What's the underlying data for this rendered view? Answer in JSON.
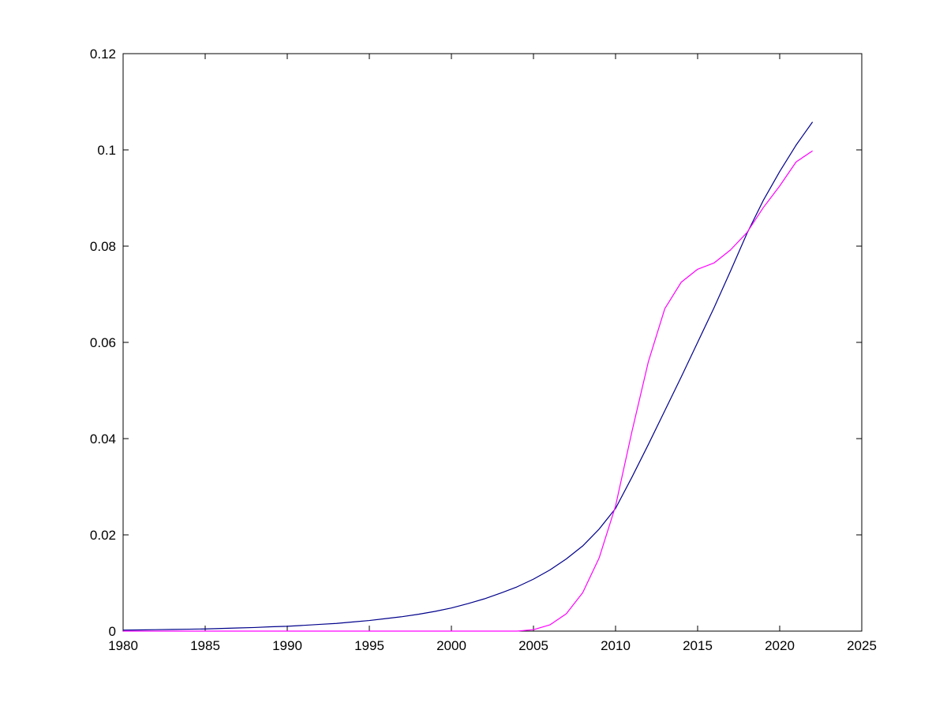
{
  "figure": {
    "background_color": "#ffffff",
    "axis_color": "#000000"
  },
  "chart_data": {
    "type": "line",
    "title": "",
    "xlabel": "",
    "ylabel": "",
    "grid": false,
    "legend": "none",
    "box": true,
    "xlim": [
      1980,
      2025
    ],
    "ylim": [
      0,
      0.12
    ],
    "x_ticks": [
      1980,
      1985,
      1990,
      1995,
      2000,
      2005,
      2010,
      2015,
      2020,
      2025
    ],
    "x_tick_labels": [
      "1980",
      "1985",
      "1990",
      "1995",
      "2000",
      "2005",
      "2010",
      "2015",
      "2020",
      "2025"
    ],
    "y_ticks": [
      0,
      0.02,
      0.04,
      0.06,
      0.08,
      0.1,
      0.12
    ],
    "y_tick_labels": [
      "0",
      "0.02",
      "0.04",
      "0.06",
      "0.08",
      "0.1",
      "0.12"
    ],
    "x": [
      1980,
      1981,
      1982,
      1983,
      1984,
      1985,
      1986,
      1987,
      1988,
      1989,
      1990,
      1991,
      1992,
      1993,
      1994,
      1995,
      1996,
      1997,
      1998,
      1999,
      2000,
      2001,
      2002,
      2003,
      2004,
      2005,
      2006,
      2007,
      2008,
      2009,
      2010,
      2011,
      2012,
      2013,
      2014,
      2015,
      2016,
      2017,
      2018,
      2019,
      2020,
      2021,
      2022
    ],
    "series": [
      {
        "name": "dark-blue-smooth-curve",
        "color": "#00008B",
        "values": [
          0.0002,
          0.00025,
          0.0003,
          0.00035,
          0.0004,
          0.00045,
          0.00055,
          0.00065,
          0.00075,
          0.0009,
          0.001,
          0.0012,
          0.0014,
          0.0016,
          0.0019,
          0.0022,
          0.0026,
          0.003,
          0.0035,
          0.0041,
          0.0048,
          0.0057,
          0.0067,
          0.0079,
          0.0092,
          0.0108,
          0.0127,
          0.015,
          0.0177,
          0.0212,
          0.0255,
          0.032,
          0.0388,
          0.0458,
          0.0528,
          0.06,
          0.0672,
          0.0748,
          0.0826,
          0.0895,
          0.0955,
          0.101,
          0.1058
        ]
      },
      {
        "name": "magenta-curve",
        "color": "#FF00FF",
        "values": [
          0,
          0,
          0,
          0,
          0,
          0,
          0,
          0,
          0,
          0,
          0,
          0,
          0,
          0,
          0,
          0,
          0,
          0,
          0,
          0,
          0,
          0,
          0,
          0,
          0,
          0.0003,
          0.0013,
          0.0036,
          0.008,
          0.0152,
          0.026,
          0.0415,
          0.056,
          0.067,
          0.0725,
          0.0752,
          0.0765,
          0.0792,
          0.0828,
          0.088,
          0.0925,
          0.0975,
          0.0998
        ]
      }
    ]
  }
}
